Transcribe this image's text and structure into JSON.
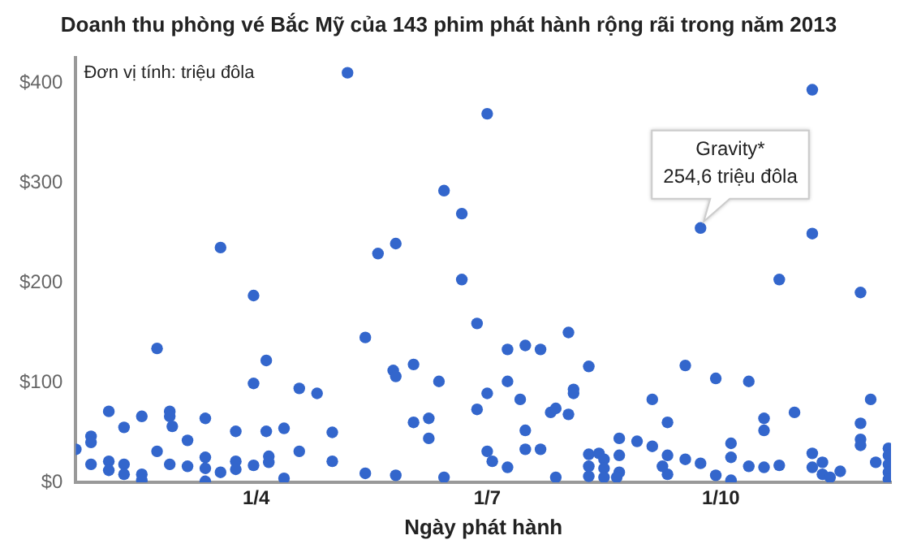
{
  "chart_data": {
    "type": "scatter",
    "title": "Doanh thu phòng vé Bắc Mỹ của 143 phim phát hành rộng rãi trong năm 2013",
    "xlabel": "Ngày phát hành",
    "marker": "circle",
    "legend": false,
    "grid": false,
    "xlim": [
      "2013-01-20",
      "2013-12-07"
    ],
    "xticks": [
      {
        "value": "2013-04-01",
        "label": "1/4"
      },
      {
        "value": "2013-07-01",
        "label": "1/7"
      },
      {
        "value": "2013-10-01",
        "label": "1/10"
      }
    ],
    "ylim": [
      0,
      425
    ],
    "yticks": [
      {
        "value": 0,
        "label": "$0"
      },
      {
        "value": 100,
        "label": "$100"
      },
      {
        "value": 200,
        "label": "$200"
      },
      {
        "value": 300,
        "label": "$300"
      },
      {
        "value": 400,
        "label": "$400"
      }
    ],
    "annotations": [
      "Đơn vị tính: triệu đôla",
      {
        "text": "Gravity*\n254,6 triệu đôla",
        "x": "2013-09-23",
        "y": 254.6
      }
    ],
    "series": [
      {
        "color": "#3366cc",
        "x": [
          "2013-01-20",
          "2013-01-26",
          "2013-01-26",
          "2013-01-26",
          "2013-02-02",
          "2013-02-02",
          "2013-02-02",
          "2013-02-08",
          "2013-02-08",
          "2013-02-08",
          "2013-02-15",
          "2013-02-15",
          "2013-02-15",
          "2013-02-21",
          "2013-02-21",
          "2013-02-26",
          "2013-02-26",
          "2013-02-27",
          "2013-02-26",
          "2013-03-05",
          "2013-03-05",
          "2013-03-12",
          "2013-03-12",
          "2013-03-12",
          "2013-03-12",
          "2013-03-18",
          "2013-03-18",
          "2013-03-24",
          "2013-03-24",
          "2013-03-24",
          "2013-03-31",
          "2013-03-31",
          "2013-03-31",
          "2013-04-05",
          "2013-04-05",
          "2013-04-06",
          "2013-04-06",
          "2013-04-12",
          "2013-04-12",
          "2013-04-18",
          "2013-04-18",
          "2013-04-25",
          "2013-05-01",
          "2013-05-01",
          "2013-05-07",
          "2013-05-14",
          "2013-05-14",
          "2013-05-19",
          "2013-05-26",
          "2013-05-25",
          "2013-05-26",
          "2013-05-26",
          "2013-06-02",
          "2013-06-02",
          "2013-06-08",
          "2013-06-08",
          "2013-06-12",
          "2013-06-14",
          "2013-06-14",
          "2013-06-21",
          "2013-06-21",
          "2013-06-27",
          "2013-06-27",
          "2013-07-01",
          "2013-07-01",
          "2013-07-01",
          "2013-07-03",
          "2013-07-09",
          "2013-07-09",
          "2013-07-09",
          "2013-07-14",
          "2013-07-16",
          "2013-07-16",
          "2013-07-16",
          "2013-07-22",
          "2013-07-22",
          "2013-07-26",
          "2013-07-28",
          "2013-07-28",
          "2013-08-02",
          "2013-08-02",
          "2013-08-04",
          "2013-08-04",
          "2013-08-10",
          "2013-08-10",
          "2013-08-10",
          "2013-08-10",
          "2013-08-14",
          "2013-08-16",
          "2013-08-16",
          "2013-08-16",
          "2013-08-22",
          "2013-08-22",
          "2013-08-22",
          "2013-08-21",
          "2013-08-29",
          "2013-09-04",
          "2013-09-04",
          "2013-09-10",
          "2013-09-10",
          "2013-09-10",
          "2013-09-08",
          "2013-09-17",
          "2013-09-17",
          "2013-09-23",
          "2013-09-23",
          "2013-09-29",
          "2013-09-29",
          "2013-10-05",
          "2013-10-05",
          "2013-10-05",
          "2013-10-12",
          "2013-10-12",
          "2013-10-18",
          "2013-10-18",
          "2013-10-18",
          "2013-10-24",
          "2013-10-24",
          "2013-10-30",
          "2013-11-06",
          "2013-11-06",
          "2013-11-06",
          "2013-11-06",
          "2013-11-10",
          "2013-11-10",
          "2013-11-13",
          "2013-11-17",
          "2013-11-25",
          "2013-11-25",
          "2013-11-25",
          "2013-11-25",
          "2013-11-29",
          "2013-12-01",
          "2013-12-06",
          "2013-12-06",
          "2013-12-06",
          "2013-12-06",
          "2013-12-06"
        ],
        "values": [
          33,
          46,
          40,
          18,
          71,
          21,
          12,
          55,
          18,
          8,
          66,
          8,
          2,
          134,
          31,
          71,
          66,
          56,
          18,
          42,
          16,
          64,
          25,
          14,
          1,
          235,
          10,
          51,
          21,
          13,
          187,
          99,
          17,
          122,
          51,
          26,
          20,
          54,
          4,
          94,
          31,
          89,
          50,
          21,
          410,
          145,
          9,
          229,
          239,
          112,
          106,
          7,
          118,
          60,
          64,
          44,
          101,
          292,
          5,
          269,
          203,
          159,
          73,
          369,
          89,
          31,
          21,
          133,
          101,
          15,
          83,
          137,
          52,
          33,
          133,
          33,
          70,
          74,
          5,
          150,
          68,
          93,
          89,
          116,
          28,
          16,
          6,
          29,
          23,
          14,
          5,
          44,
          27,
          10,
          5,
          41,
          83,
          36,
          60,
          27,
          8,
          16,
          117,
          23,
          254.6,
          19,
          104,
          7,
          39,
          25,
          2,
          101,
          16,
          64,
          52,
          15,
          203,
          17,
          70,
          393,
          249,
          29,
          15,
          20,
          8,
          5,
          11,
          190,
          59,
          43,
          37,
          83,
          20,
          34,
          27,
          18,
          10,
          3
        ]
      }
    ]
  }
}
